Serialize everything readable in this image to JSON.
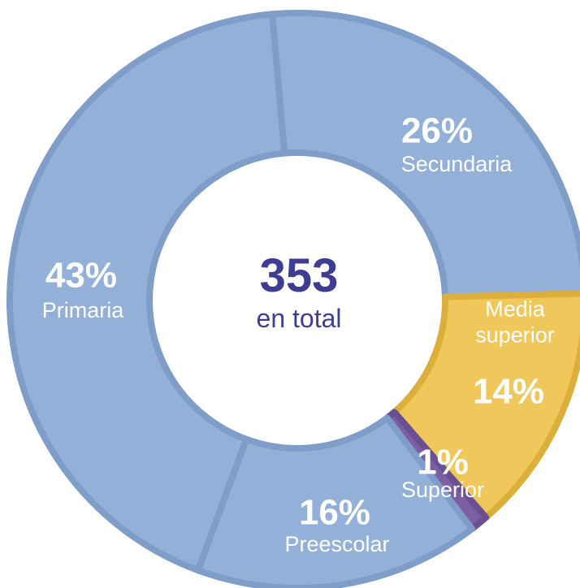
{
  "chart_data": {
    "type": "pie",
    "categories": [
      "Secundaria",
      "Media superior",
      "Superior",
      "Preescolar",
      "Primaria"
    ],
    "values": [
      26,
      14,
      1,
      16,
      43
    ],
    "value_labels": [
      "26%",
      "14%",
      "1%",
      "16%",
      "43%"
    ],
    "colors": [
      "#93b0d8",
      "#f0c75a",
      "#7b5fa2",
      "#93b0d8",
      "#93b0d8"
    ],
    "center_value": 353,
    "center_label": "en total"
  }
}
